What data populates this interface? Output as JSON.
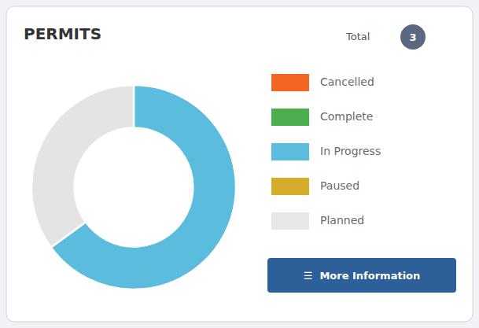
{
  "chart_data": {
    "type": "pie",
    "title": "PERMITS",
    "categories": [
      "In Progress",
      "Planned"
    ],
    "values": [
      65,
      35
    ],
    "colors": [
      "#5bbcde",
      "#e4e4e4"
    ],
    "legend": "right",
    "legend_items": [
      {
        "label": "Cancelled",
        "color": "#f26522"
      },
      {
        "label": "Complete",
        "color": "#4cae4c"
      },
      {
        "label": "In Progress",
        "color": "#5bbcde"
      },
      {
        "label": "Paused",
        "color": "#d4ac2a"
      },
      {
        "label": "Planned",
        "color": "#e8e8e8"
      }
    ],
    "annotations": [
      {
        "text": "Total"
      },
      {
        "text": "3"
      },
      {
        "text": "☰  More Information"
      }
    ]
  }
}
